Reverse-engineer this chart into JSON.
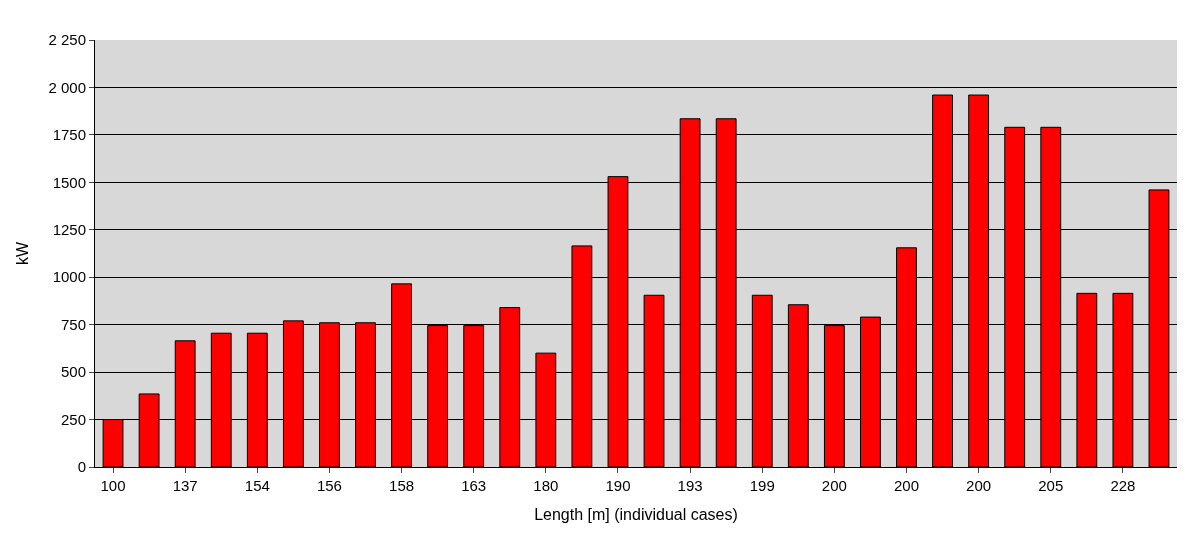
{
  "chart_data": {
    "type": "bar",
    "xlabel": "Length [m] (individual cases)",
    "ylabel": "kW",
    "categories": [
      "100",
      null,
      "137",
      null,
      "154",
      null,
      "156",
      null,
      "158",
      null,
      "163",
      null,
      "180",
      null,
      "190",
      null,
      "193",
      null,
      "199",
      null,
      "200",
      null,
      "200",
      null,
      "200",
      null,
      "205",
      null,
      "228",
      null
    ],
    "values": [
      250,
      385,
      665,
      705,
      705,
      770,
      760,
      760,
      965,
      745,
      745,
      840,
      600,
      1165,
      1530,
      905,
      1835,
      1835,
      905,
      855,
      745,
      790,
      1155,
      1960,
      1960,
      1790,
      1790,
      915,
      915,
      1460
    ],
    "color": "#ff0000",
    "ylim": [
      0,
      2250
    ],
    "yticks": [
      0,
      250,
      500,
      750,
      1000,
      1250,
      1500,
      1750,
      {
        "value": 2000,
        "label": "2 000"
      },
      {
        "value": 2250,
        "label": "2 250"
      }
    ],
    "grid": "y"
  }
}
